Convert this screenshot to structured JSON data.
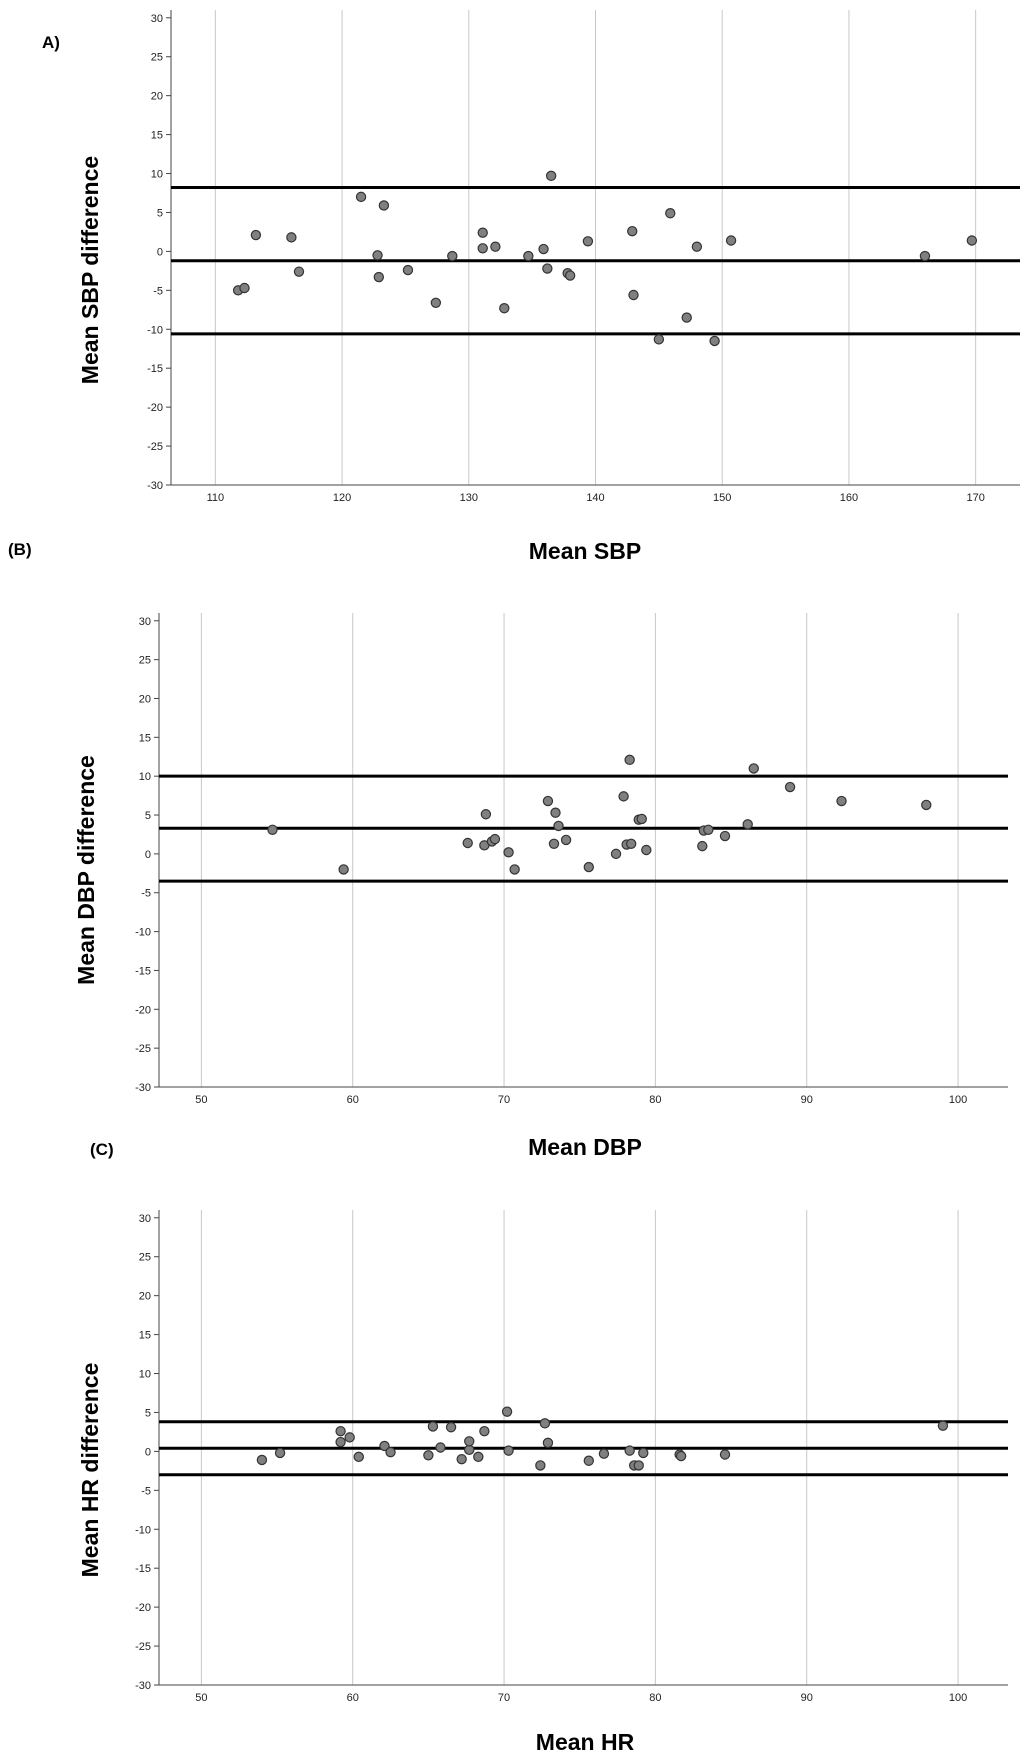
{
  "chart_data": [
    {
      "type": "scatter",
      "panel_label": "A)",
      "xlabel": "Mean SBP",
      "ylabel": "Mean SBP difference",
      "xlim": [
        106.5,
        173.5
      ],
      "ylim": [
        -30,
        31
      ],
      "xticks": [
        110,
        120,
        130,
        140,
        150,
        160,
        170
      ],
      "yticks": [
        30,
        25,
        20,
        15,
        10,
        5,
        0,
        -5,
        -10,
        -15,
        -20,
        -25,
        -30
      ],
      "reference_lines": [
        8.2,
        -1.2,
        -10.6
      ],
      "grid": "vertical",
      "points": [
        [
          111.8,
          -5.0
        ],
        [
          112.3,
          -4.7
        ],
        [
          113.2,
          2.1
        ],
        [
          116.0,
          1.8
        ],
        [
          116.6,
          -2.6
        ],
        [
          121.5,
          7.0
        ],
        [
          122.8,
          -0.5
        ],
        [
          123.3,
          5.9
        ],
        [
          122.9,
          -3.3
        ],
        [
          125.2,
          -2.4
        ],
        [
          127.4,
          -6.6
        ],
        [
          128.7,
          -0.6
        ],
        [
          131.1,
          2.4
        ],
        [
          131.1,
          0.4
        ],
        [
          132.1,
          0.6
        ],
        [
          132.8,
          -7.3
        ],
        [
          134.7,
          -0.6
        ],
        [
          135.9,
          0.3
        ],
        [
          136.2,
          -2.2
        ],
        [
          136.5,
          9.7
        ],
        [
          137.8,
          -2.8
        ],
        [
          138.0,
          -3.1
        ],
        [
          139.4,
          1.3
        ],
        [
          142.9,
          2.6
        ],
        [
          143.0,
          -5.6
        ],
        [
          145.0,
          -11.3
        ],
        [
          145.9,
          4.9
        ],
        [
          147.2,
          -8.5
        ],
        [
          148.0,
          0.6
        ],
        [
          149.4,
          -11.5
        ],
        [
          150.7,
          1.4
        ],
        [
          166.0,
          -0.6
        ],
        [
          169.7,
          1.4
        ]
      ]
    },
    {
      "type": "scatter",
      "panel_label": "(B)",
      "xlabel": "Mean DBP",
      "ylabel": "Mean DBP difference",
      "xlim": [
        47.2,
        103.3
      ],
      "ylim": [
        -30,
        31
      ],
      "xticks": [
        50,
        60,
        70,
        80,
        90,
        100
      ],
      "yticks": [
        30,
        25,
        20,
        15,
        10,
        5,
        0,
        -5,
        -10,
        -15,
        -20,
        -25,
        -30
      ],
      "reference_lines": [
        10.0,
        3.3,
        -3.5
      ],
      "grid": "vertical",
      "points": [
        [
          54.7,
          3.1
        ],
        [
          59.4,
          -2.0
        ],
        [
          67.6,
          1.4
        ],
        [
          68.7,
          1.1
        ],
        [
          68.8,
          5.1
        ],
        [
          69.2,
          1.6
        ],
        [
          69.4,
          1.9
        ],
        [
          70.3,
          0.2
        ],
        [
          70.7,
          -2.0
        ],
        [
          72.9,
          6.8
        ],
        [
          73.3,
          1.3
        ],
        [
          73.4,
          5.3
        ],
        [
          73.6,
          3.6
        ],
        [
          74.1,
          1.8
        ],
        [
          75.6,
          -1.7
        ],
        [
          77.4,
          0.0
        ],
        [
          77.9,
          7.4
        ],
        [
          78.1,
          1.2
        ],
        [
          78.3,
          12.1
        ],
        [
          78.4,
          1.3
        ],
        [
          78.9,
          4.4
        ],
        [
          79.1,
          4.5
        ],
        [
          79.4,
          0.5
        ],
        [
          83.1,
          1.0
        ],
        [
          83.2,
          3.0
        ],
        [
          83.5,
          3.1
        ],
        [
          84.6,
          2.3
        ],
        [
          86.1,
          3.8
        ],
        [
          86.5,
          11.0
        ],
        [
          88.9,
          8.6
        ],
        [
          92.3,
          6.8
        ],
        [
          97.9,
          6.3
        ]
      ]
    },
    {
      "type": "scatter",
      "panel_label": "(C)",
      "xlabel": "Mean HR",
      "ylabel": "Mean HR difference",
      "xlim": [
        47.2,
        103.3
      ],
      "ylim": [
        -30,
        31
      ],
      "xticks": [
        50,
        60,
        70,
        80,
        90,
        100
      ],
      "yticks": [
        30,
        25,
        20,
        15,
        10,
        5,
        0,
        -5,
        -10,
        -15,
        -20,
        -25,
        -30
      ],
      "reference_lines": [
        3.8,
        0.4,
        -3.0
      ],
      "grid": "vertical",
      "points": [
        [
          54.0,
          -1.1
        ],
        [
          55.2,
          -0.2
        ],
        [
          59.2,
          2.6
        ],
        [
          59.2,
          1.2
        ],
        [
          59.8,
          1.8
        ],
        [
          60.4,
          -0.7
        ],
        [
          62.1,
          0.7
        ],
        [
          62.5,
          -0.1
        ],
        [
          65.0,
          -0.5
        ],
        [
          65.3,
          3.2
        ],
        [
          65.8,
          0.5
        ],
        [
          66.5,
          3.1
        ],
        [
          67.2,
          -1.0
        ],
        [
          67.7,
          0.2
        ],
        [
          67.7,
          1.3
        ],
        [
          68.3,
          -0.7
        ],
        [
          68.7,
          2.6
        ],
        [
          70.2,
          5.1
        ],
        [
          70.3,
          0.1
        ],
        [
          72.4,
          -1.8
        ],
        [
          72.7,
          3.6
        ],
        [
          72.9,
          1.1
        ],
        [
          75.6,
          -1.2
        ],
        [
          76.6,
          -0.3
        ],
        [
          78.3,
          0.1
        ],
        [
          78.6,
          -1.8
        ],
        [
          78.9,
          -1.8
        ],
        [
          79.2,
          -0.2
        ],
        [
          81.6,
          -0.4
        ],
        [
          81.7,
          -0.6
        ],
        [
          84.6,
          -0.4
        ],
        [
          99.0,
          3.3
        ]
      ]
    }
  ]
}
